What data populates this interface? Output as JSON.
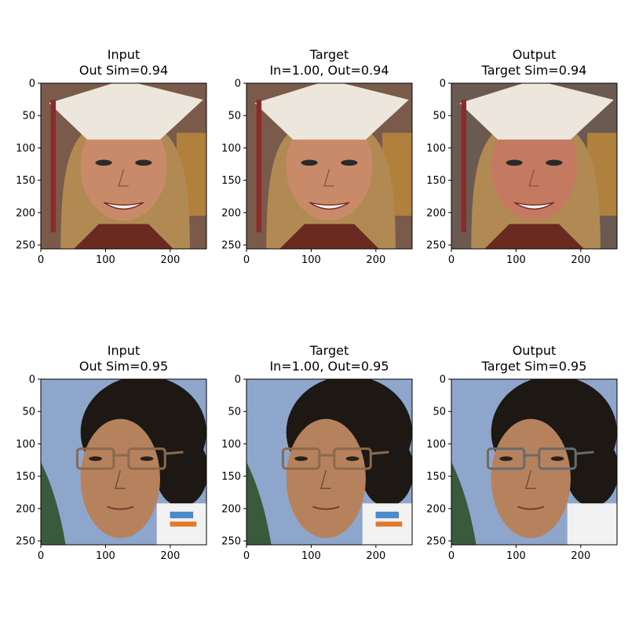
{
  "figure": {
    "rows": [
      {
        "panels": [
          {
            "title_line1": "Input",
            "title_line2": "Out Sim=0.94",
            "subject": "graduate-smiling"
          },
          {
            "title_line1": "Target",
            "title_line2": "In=1.00, Out=0.94",
            "subject": "graduate-smiling"
          },
          {
            "title_line1": "Output",
            "title_line2": "Target Sim=0.94",
            "subject": "graduate-smiling"
          }
        ]
      },
      {
        "panels": [
          {
            "title_line1": "Input",
            "title_line2": "Out Sim=0.95",
            "subject": "woman-glasses"
          },
          {
            "title_line1": "Target",
            "title_line2": "In=1.00, Out=0.95",
            "subject": "woman-glasses"
          },
          {
            "title_line1": "Output",
            "title_line2": "Target Sim=0.95",
            "subject": "woman-glasses"
          }
        ]
      }
    ]
  },
  "chart_data": [
    {
      "type": "image",
      "title": "Input\nOut Sim=0.94",
      "xticks": [
        0,
        100,
        200
      ],
      "yticks": [
        0,
        50,
        100,
        150,
        200,
        250
      ],
      "xlim": [
        0,
        256
      ],
      "ylim": [
        256,
        0
      ]
    },
    {
      "type": "image",
      "title": "Target\nIn=1.00, Out=0.94",
      "xticks": [
        0,
        100,
        200
      ],
      "yticks": [
        0,
        50,
        100,
        150,
        200,
        250
      ],
      "xlim": [
        0,
        256
      ],
      "ylim": [
        256,
        0
      ]
    },
    {
      "type": "image",
      "title": "Output\nTarget Sim=0.94",
      "xticks": [
        0,
        100,
        200
      ],
      "yticks": [
        0,
        50,
        100,
        150,
        200,
        250
      ],
      "xlim": [
        0,
        256
      ],
      "ylim": [
        256,
        0
      ]
    },
    {
      "type": "image",
      "title": "Input\nOut Sim=0.95",
      "xticks": [
        0,
        100,
        200
      ],
      "yticks": [
        0,
        50,
        100,
        150,
        200,
        250
      ],
      "xlim": [
        0,
        256
      ],
      "ylim": [
        256,
        0
      ]
    },
    {
      "type": "image",
      "title": "Target\nIn=1.00, Out=0.95",
      "xticks": [
        0,
        100,
        200
      ],
      "yticks": [
        0,
        50,
        100,
        150,
        200,
        250
      ],
      "xlim": [
        0,
        256
      ],
      "ylim": [
        256,
        0
      ]
    },
    {
      "type": "image",
      "title": "Output\nTarget Sim=0.95",
      "xticks": [
        0,
        100,
        200
      ],
      "yticks": [
        0,
        50,
        100,
        150,
        200,
        250
      ],
      "xlim": [
        0,
        256
      ],
      "ylim": [
        256,
        0
      ]
    }
  ],
  "colors": {
    "skin": "#c98a6a",
    "cap": "#ece6dc",
    "blond_hair": "#b08a52",
    "dark_hair": "#1e1814",
    "sky": "#8fa6cc",
    "foliage": "#3a5a3c",
    "frame_brown": "#8a6a4a"
  }
}
